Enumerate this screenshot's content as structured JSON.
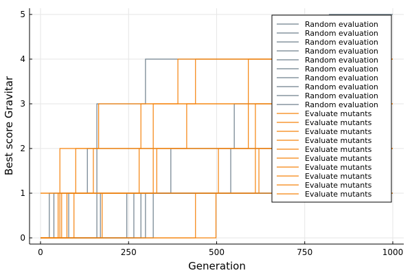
{
  "chart_data": {
    "type": "line",
    "title": "",
    "xlabel": "Generation",
    "ylabel": "Best score Gravitar",
    "xlim": [
      0,
      1000
    ],
    "ylim": [
      0,
      5
    ],
    "xticks": [
      0,
      250,
      500,
      750,
      1000
    ],
    "yticks": [
      0,
      1,
      2,
      3,
      4,
      5
    ],
    "grid": true,
    "legend_position": "top-right",
    "step": true,
    "colors": {
      "random": "#6e7f8c",
      "mutants": "#f5820b"
    },
    "series": [
      {
        "name": "Random evaluation",
        "group": "random",
        "steps": [
          [
            0,
            0
          ],
          [
            25,
            1
          ],
          [
            1000,
            1
          ]
        ]
      },
      {
        "name": "Random evaluation",
        "group": "random",
        "steps": [
          [
            0,
            0
          ],
          [
            38,
            1
          ],
          [
            133,
            2
          ],
          [
            1000,
            2
          ]
        ]
      },
      {
        "name": "Random evaluation",
        "group": "random",
        "steps": [
          [
            0,
            0
          ],
          [
            80,
            1
          ],
          [
            1000,
            1
          ]
        ]
      },
      {
        "name": "Random evaluation",
        "group": "random",
        "steps": [
          [
            0,
            0
          ],
          [
            170,
            1
          ],
          [
            1000,
            1
          ]
        ]
      },
      {
        "name": "Random evaluation",
        "group": "random",
        "steps": [
          [
            0,
            0
          ],
          [
            245,
            1
          ],
          [
            370,
            2
          ],
          [
            550,
            3
          ],
          [
            820,
            5
          ],
          [
            1000,
            5
          ]
        ]
      },
      {
        "name": "Random evaluation",
        "group": "random",
        "steps": [
          [
            0,
            0
          ],
          [
            265,
            1
          ],
          [
            1000,
            1
          ]
        ]
      },
      {
        "name": "Random evaluation",
        "group": "random",
        "steps": [
          [
            0,
            0
          ],
          [
            285,
            1
          ],
          [
            1000,
            1
          ]
        ]
      },
      {
        "name": "Random evaluation",
        "group": "random",
        "steps": [
          [
            0,
            0
          ],
          [
            298,
            1
          ],
          [
            1000,
            1
          ]
        ]
      },
      {
        "name": "Random evaluation",
        "group": "random",
        "steps": [
          [
            0,
            0
          ],
          [
            320,
            1
          ],
          [
            540,
            2
          ],
          [
            1000,
            2
          ]
        ]
      },
      {
        "name": "Random evaluation",
        "group": "random",
        "steps": [
          [
            0,
            0
          ],
          [
            160,
            3
          ],
          [
            298,
            4
          ],
          [
            1000,
            4
          ]
        ]
      },
      {
        "name": "Evaluate mutants",
        "group": "mutants",
        "steps": [
          [
            0,
            0
          ],
          [
            55,
            1
          ],
          [
            100,
            2
          ],
          [
            165,
            3
          ],
          [
            390,
            4
          ],
          [
            1000,
            4
          ]
        ]
      },
      {
        "name": "Evaluate mutants",
        "group": "mutants",
        "steps": [
          [
            0,
            0
          ],
          [
            60,
            1
          ],
          [
            150,
            2
          ],
          [
            285,
            3
          ],
          [
            440,
            4
          ],
          [
            1000,
            4
          ]
        ]
      },
      {
        "name": "Evaluate mutants",
        "group": "mutants",
        "steps": [
          [
            0,
            1
          ],
          [
            280,
            2
          ],
          [
            415,
            3
          ],
          [
            1000,
            3
          ]
        ]
      },
      {
        "name": "Evaluate mutants",
        "group": "mutants",
        "steps": [
          [
            0,
            0
          ],
          [
            75,
            1
          ],
          [
            320,
            3
          ],
          [
            1000,
            3
          ]
        ]
      },
      {
        "name": "Evaluate mutants",
        "group": "mutants",
        "steps": [
          [
            0,
            0
          ],
          [
            95,
            1
          ],
          [
            330,
            2
          ],
          [
            1000,
            2
          ]
        ]
      },
      {
        "name": "Evaluate mutants",
        "group": "mutants",
        "steps": [
          [
            0,
            0
          ],
          [
            175,
            1
          ],
          [
            505,
            2
          ],
          [
            1000,
            2
          ]
        ]
      },
      {
        "name": "Evaluate mutants",
        "group": "mutants",
        "steps": [
          [
            0,
            0
          ],
          [
            440,
            1
          ],
          [
            620,
            2
          ],
          [
            1000,
            2
          ]
        ]
      },
      {
        "name": "Evaluate mutants",
        "group": "mutants",
        "steps": [
          [
            0,
            0
          ],
          [
            498,
            1
          ],
          [
            610,
            3
          ],
          [
            1000,
            3
          ]
        ]
      },
      {
        "name": "Evaluate mutants",
        "group": "mutants",
        "steps": [
          [
            0,
            1
          ],
          [
            55,
            2
          ],
          [
            590,
            4
          ],
          [
            1000,
            4
          ]
        ]
      },
      {
        "name": "Evaluate mutants",
        "group": "mutants",
        "steps": [
          [
            0,
            0
          ],
          [
            50,
            1
          ],
          [
            1000,
            1
          ]
        ]
      }
    ]
  }
}
